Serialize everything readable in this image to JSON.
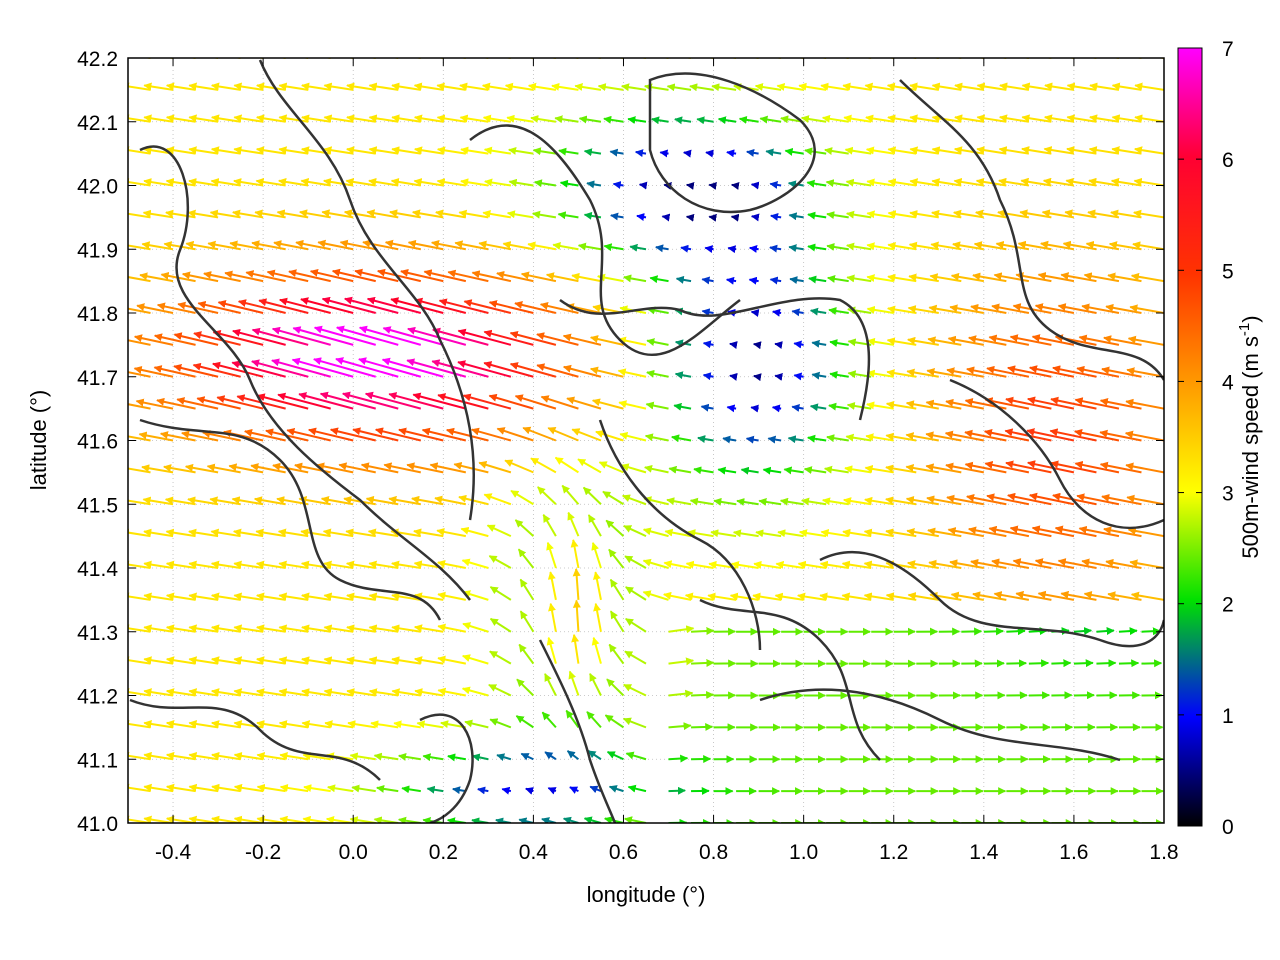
{
  "chart_data": {
    "type": "vector-field",
    "xlabel": "longitude (°)",
    "ylabel": "latitude (°)",
    "xlim": [
      -0.5,
      1.8
    ],
    "ylim": [
      41.0,
      42.2
    ],
    "xticks": [
      "-0.4",
      "-0.2",
      "0.0",
      "0.2",
      "0.4",
      "0.6",
      "0.8",
      "1.0",
      "1.2",
      "1.4",
      "1.6",
      "1.8"
    ],
    "xtick_values": [
      -0.4,
      -0.2,
      0.0,
      0.2,
      0.4,
      0.6,
      0.8,
      1.0,
      1.2,
      1.4,
      1.6,
      1.8
    ],
    "yticks": [
      "41.0",
      "41.1",
      "41.2",
      "41.3",
      "41.4",
      "41.5",
      "41.6",
      "41.7",
      "41.8",
      "41.9",
      "42.0",
      "42.1",
      "42.2"
    ],
    "ytick_values": [
      41.0,
      41.1,
      41.2,
      41.3,
      41.4,
      41.5,
      41.6,
      41.7,
      41.8,
      41.9,
      42.0,
      42.1,
      42.2
    ],
    "colorbar": {
      "label_main": "500m-wind speed (m s",
      "label_sup": "-1",
      "label_close": ")",
      "ticks": [
        "0",
        "1",
        "2",
        "3",
        "4",
        "5",
        "6",
        "7"
      ],
      "tick_values": [
        0,
        1,
        2,
        3,
        4,
        5,
        6,
        7
      ],
      "range": [
        0,
        7
      ],
      "colors": [
        "#000000",
        "#0000ff",
        "#00e000",
        "#ffff00",
        "#ff9900",
        "#ff0000",
        "#ff00ff"
      ]
    },
    "grid": true,
    "contours": true
  }
}
